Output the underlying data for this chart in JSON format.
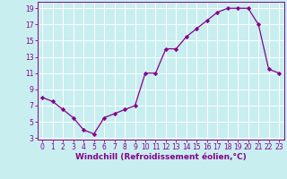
{
  "x": [
    0,
    1,
    2,
    3,
    4,
    5,
    6,
    7,
    8,
    9,
    10,
    11,
    12,
    13,
    14,
    15,
    16,
    17,
    18,
    19,
    20,
    21,
    22,
    23
  ],
  "y": [
    8,
    7.5,
    6.5,
    5.5,
    4,
    3.5,
    5.5,
    6,
    6.5,
    7,
    11,
    11,
    14,
    14,
    15.5,
    16.5,
    17.5,
    18.5,
    19,
    19,
    19,
    17,
    11.5,
    11
  ],
  "xlabel": "Windchill (Refroidissement éolien,°C)",
  "xlim_min": -0.5,
  "xlim_max": 23.5,
  "ylim_min": 2.8,
  "ylim_max": 19.8,
  "yticks": [
    3,
    5,
    7,
    9,
    11,
    13,
    15,
    17,
    19
  ],
  "xticks": [
    0,
    1,
    2,
    3,
    4,
    5,
    6,
    7,
    8,
    9,
    10,
    11,
    12,
    13,
    14,
    15,
    16,
    17,
    18,
    19,
    20,
    21,
    22,
    23
  ],
  "line_color": "#880088",
  "bg_color": "#c8eef0",
  "grid_color": "#ffffff",
  "xlabel_fontsize": 6.5,
  "tick_fontsize": 5.5
}
